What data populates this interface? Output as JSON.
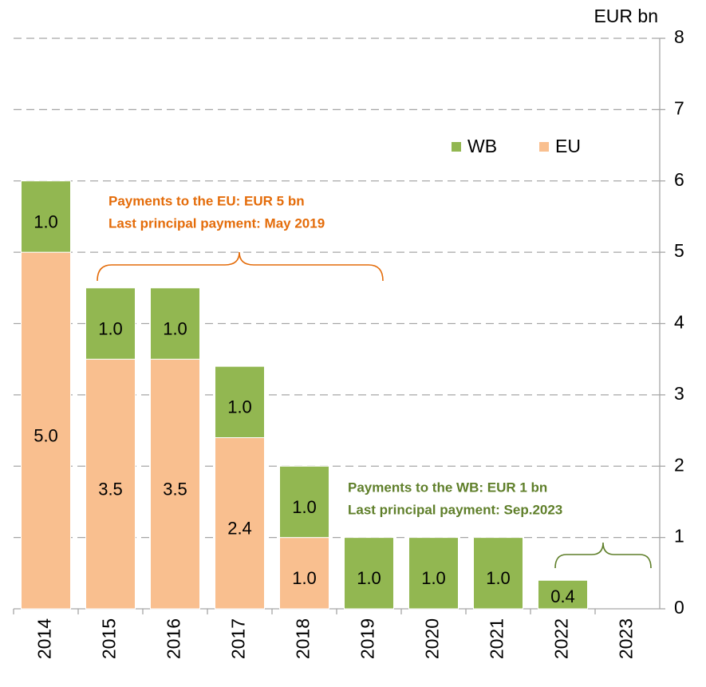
{
  "chart_data": {
    "type": "stacked-bar",
    "y_unit_label": "EUR bn",
    "categories": [
      "2014",
      "2015",
      "2016",
      "2017",
      "2018",
      "2019",
      "2020",
      "2021",
      "2022",
      "2023"
    ],
    "series": [
      {
        "name": "EU",
        "color": "#f9bf8f",
        "values": [
          5.0,
          3.5,
          3.5,
          2.4,
          1.0,
          null,
          null,
          null,
          null,
          null
        ],
        "value_labels": [
          "5.0",
          "3.5",
          "3.5",
          "2.4",
          "1.0",
          null,
          null,
          null,
          null,
          null
        ]
      },
      {
        "name": "WB",
        "color": "#92b751",
        "values": [
          1.0,
          1.0,
          1.0,
          1.0,
          1.0,
          1.0,
          1.0,
          1.0,
          0.4,
          null
        ],
        "value_labels": [
          "1.0",
          "1.0",
          "1.0",
          "1.0",
          "1.0",
          "1.0",
          "1.0",
          "1.0",
          "0.4",
          null
        ]
      }
    ],
    "legend_order": [
      "WB",
      "EU"
    ],
    "annotations": [
      {
        "lines": [
          "Payments to the EU: EUR 5 bn",
          "Last principal payment: May 2019"
        ],
        "color": "#e46c0a"
      },
      {
        "lines": [
          "Payments to the WB: EUR 1 bn",
          "Last principal payment: Sep.2023"
        ],
        "color": "#5f7f2a"
      }
    ],
    "ylim": [
      0,
      8
    ],
    "yticks": [
      0,
      1,
      2,
      3,
      4,
      5,
      6,
      7,
      8
    ],
    "y_axis_side": "right",
    "grid": true
  }
}
